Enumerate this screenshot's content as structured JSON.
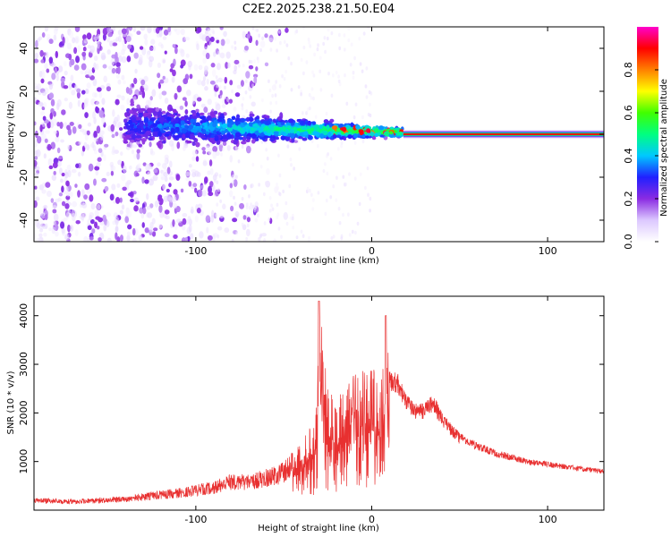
{
  "figure": {
    "title": "C2E2.2025.238.21.50.E04"
  },
  "colors": {
    "snr_line": "#e83030",
    "colorbar_stops": [
      "#ffffff",
      "#dcc8ff",
      "#8a2be2",
      "#2020ff",
      "#00c8ff",
      "#00ff80",
      "#40ff00",
      "#ffff00",
      "#ff8000",
      "#ff0000",
      "#ff00cc"
    ]
  },
  "chart_data": [
    {
      "type": "heatmap",
      "title": "C2E2.2025.238.21.50.E04",
      "xlabel": "Height of straight line (km)",
      "ylabel": "Frequency (Hz)",
      "xlim": [
        -192,
        132
      ],
      "ylim": [
        -50,
        50
      ],
      "x_ticks": [
        -100,
        0,
        100
      ],
      "y_ticks": [
        -40,
        -20,
        0,
        20,
        40
      ],
      "x_tick_labels": [
        "-100",
        "0",
        "100"
      ],
      "y_tick_labels": [
        "-40",
        "-20",
        "0",
        "20",
        "40"
      ],
      "colorbar": {
        "label": "Normalized spectral amplitude",
        "range": [
          0,
          1
        ],
        "ticks": [
          0.0,
          0.2,
          0.4,
          0.6,
          0.8
        ],
        "tick_labels": [
          "0.0",
          "0.2",
          "0.4",
          "0.6",
          "0.8"
        ]
      },
      "features": {
        "noise_region_x": [
          -192,
          -115
        ],
        "ridge_x": [
          -140,
          18
        ],
        "ridge_freq_center": [
          4,
          1
        ],
        "carrier_line_x": [
          18,
          132
        ],
        "carrier_line_freq": 0,
        "carrier_amplitude": 0.9
      }
    },
    {
      "type": "line",
      "xlabel": "Height of straight line (km)",
      "ylabel": "SNR (10 * v/v)",
      "xlim": [
        -192,
        132
      ],
      "ylim": [
        0,
        4400
      ],
      "x_ticks": [
        -100,
        0,
        100
      ],
      "y_ticks": [
        1000,
        2000,
        3000,
        4000
      ],
      "x_tick_labels": [
        "-100",
        "0",
        "100"
      ],
      "y_tick_labels": [
        "1000",
        "2000",
        "3000",
        "4000"
      ],
      "series": [
        {
          "x": [
            -190,
            -170,
            -150,
            -130,
            -110,
            -90,
            -80,
            -70,
            -60,
            -50,
            -40,
            -32,
            -30,
            -25,
            -20,
            -15,
            -10,
            -5,
            0,
            5,
            8,
            10,
            15,
            20,
            25,
            30,
            35,
            40,
            50,
            60,
            70,
            80,
            90,
            100,
            110,
            120,
            130
          ],
          "values": [
            250,
            230,
            260,
            350,
            450,
            600,
            750,
            750,
            850,
            1000,
            1400,
            1900,
            4300,
            2500,
            2300,
            2600,
            2800,
            2900,
            2900,
            3000,
            4000,
            2900,
            2800,
            2400,
            2200,
            2200,
            2400,
            2000,
            1600,
            1400,
            1250,
            1150,
            1050,
            1000,
            950,
            900,
            850
          ]
        }
      ]
    }
  ]
}
